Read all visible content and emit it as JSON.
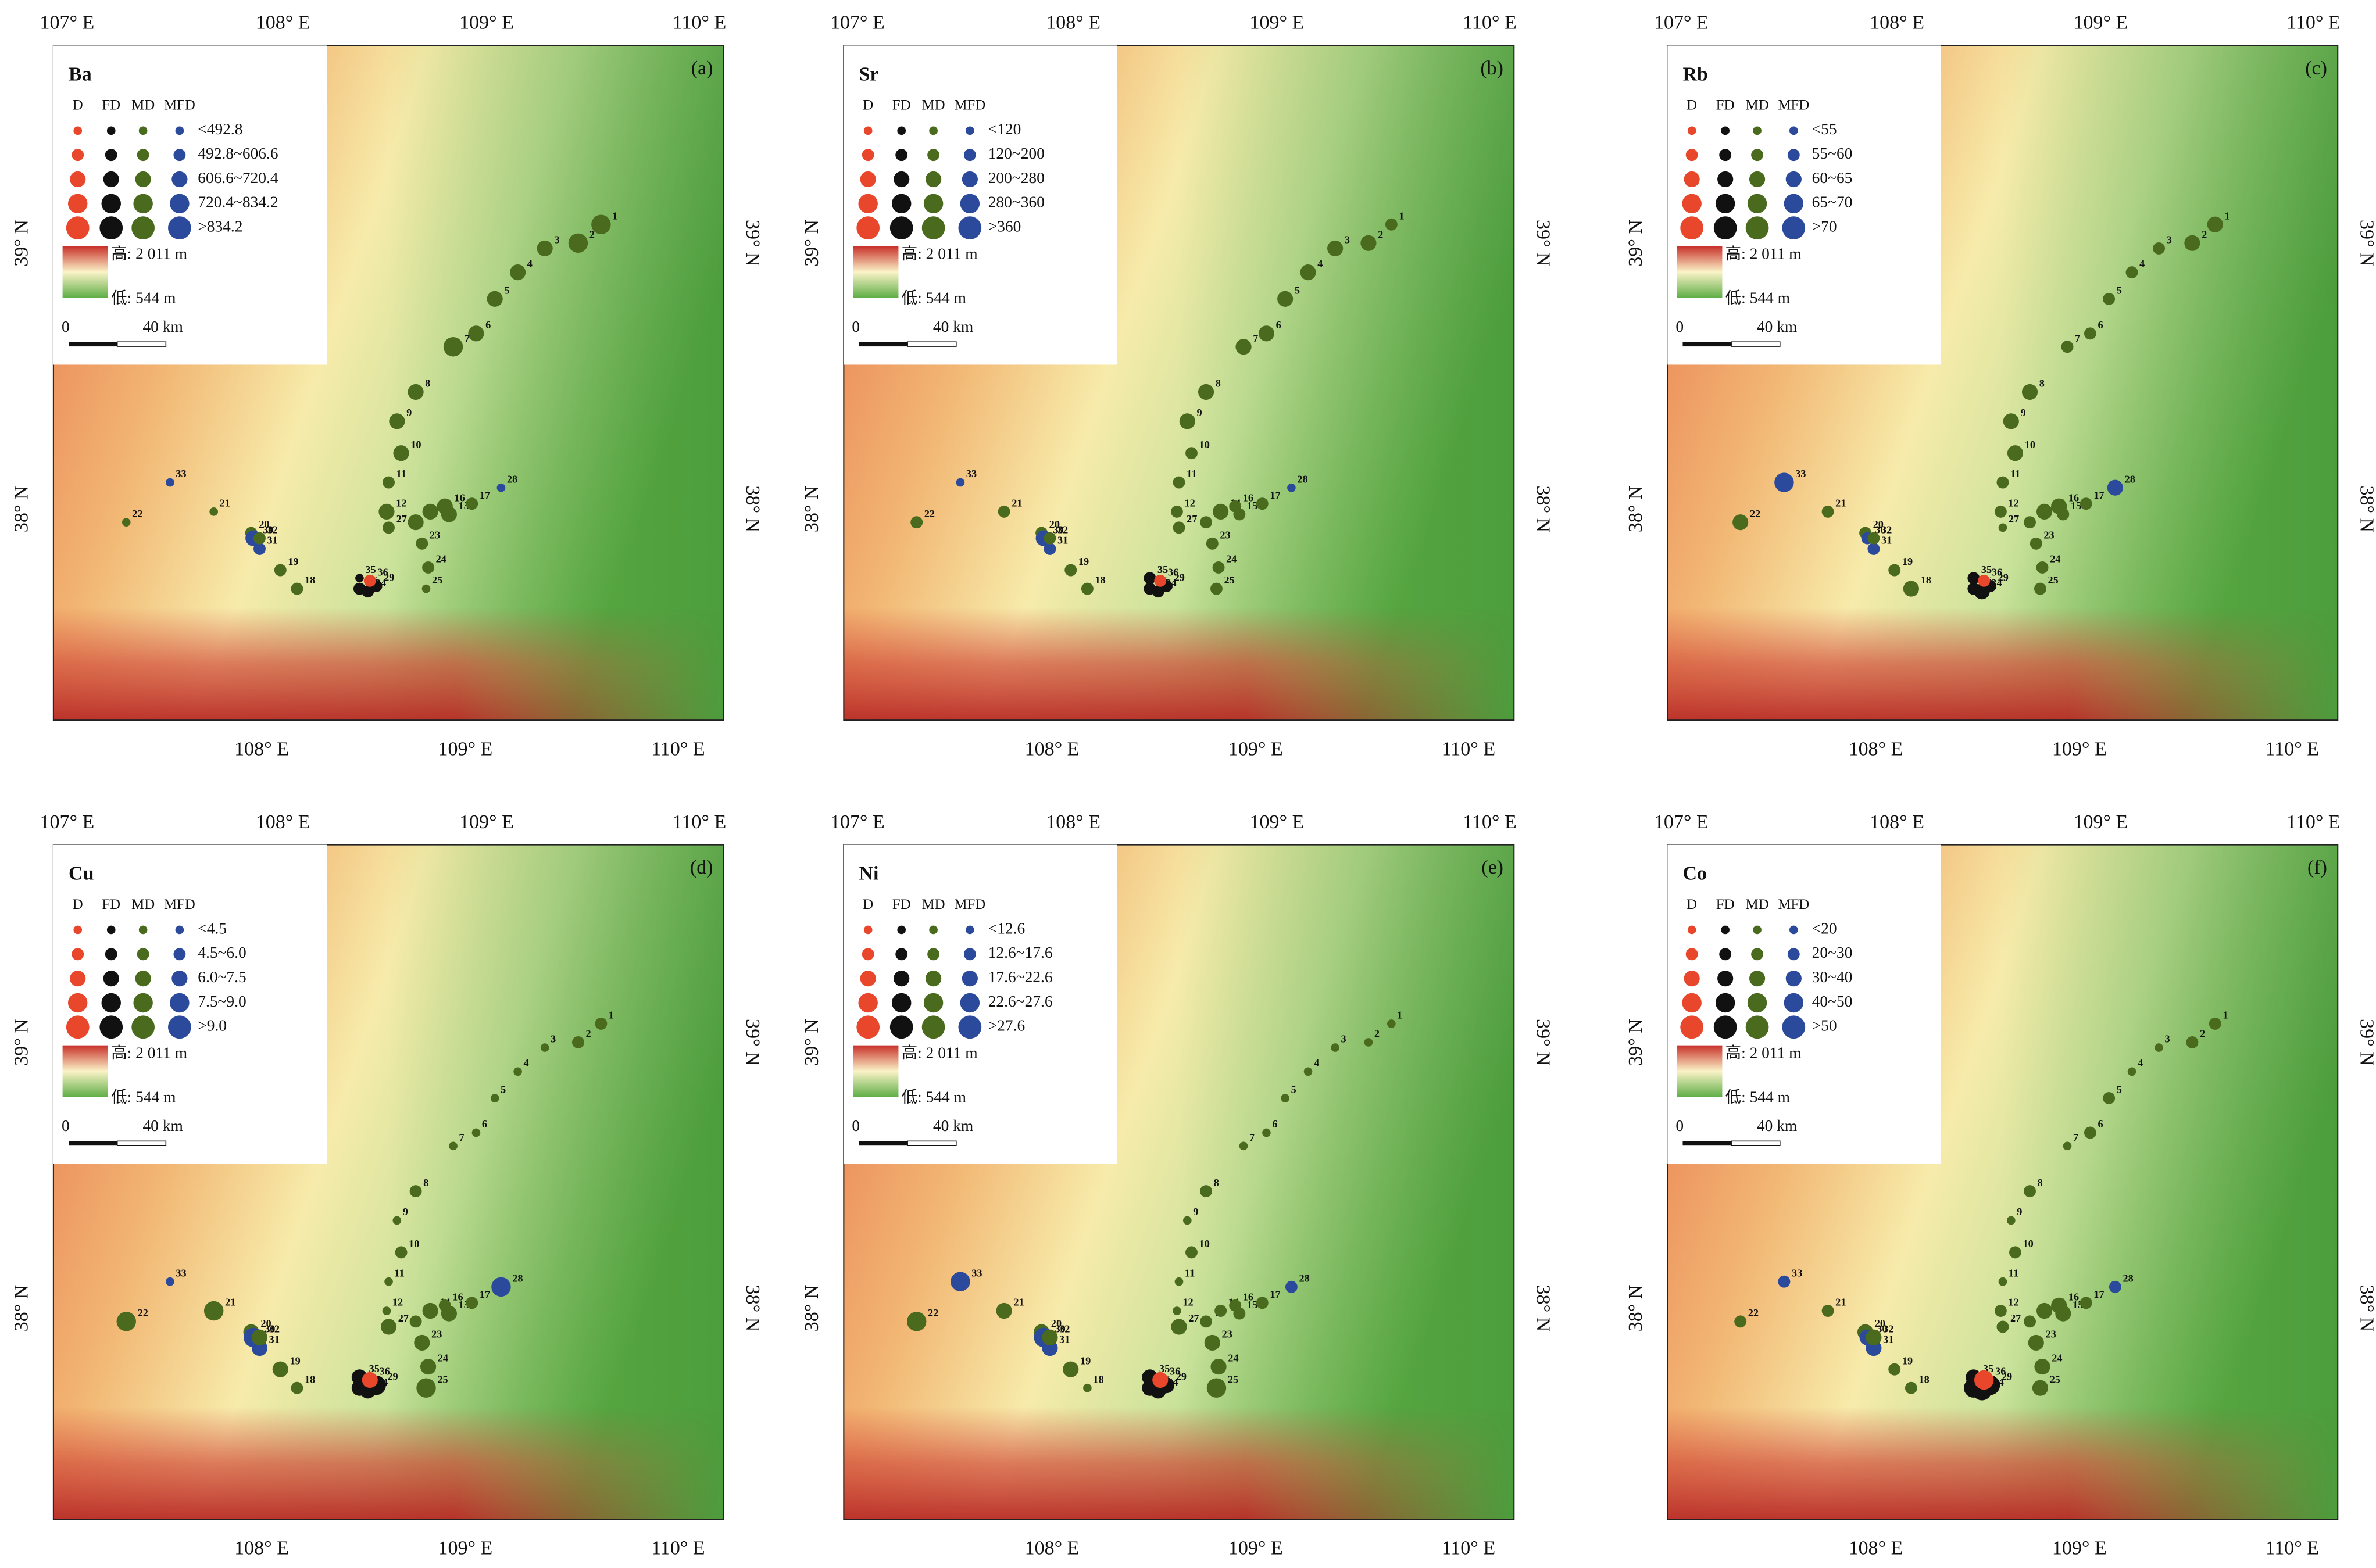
{
  "axes": {
    "top": [
      "107° E",
      "108° E",
      "109° E",
      "110° E"
    ],
    "bottom": [
      "108° E",
      "109° E",
      "110° E"
    ],
    "lat": [
      "39° N",
      "38° N"
    ]
  },
  "legend": {
    "types": [
      {
        "label": "D",
        "color": "#e8472c"
      },
      {
        "label": "FD",
        "color": "#111111"
      },
      {
        "label": "MD",
        "color": "#4a6b1e"
      },
      {
        "label": "MFD",
        "color": "#2c4a9c"
      }
    ],
    "high": "高: 2 011 m",
    "low": "低: 544 m",
    "scale_zero": "0",
    "scale_end": "40 km"
  },
  "sites": [
    {
      "label": "1",
      "lon": 109.63,
      "lat": 39.07,
      "type": 2
    },
    {
      "label": "2",
      "lon": 109.52,
      "lat": 39.0,
      "type": 2
    },
    {
      "label": "3",
      "lon": 109.36,
      "lat": 38.98,
      "type": 2
    },
    {
      "label": "4",
      "lon": 109.23,
      "lat": 38.89,
      "type": 2
    },
    {
      "label": "5",
      "lon": 109.12,
      "lat": 38.79,
      "type": 2
    },
    {
      "label": "6",
      "lon": 109.03,
      "lat": 38.66,
      "type": 2
    },
    {
      "label": "7",
      "lon": 108.92,
      "lat": 38.61,
      "type": 2
    },
    {
      "label": "8",
      "lon": 108.74,
      "lat": 38.44,
      "type": 2
    },
    {
      "label": "9",
      "lon": 108.65,
      "lat": 38.33,
      "type": 2
    },
    {
      "label": "10",
      "lon": 108.67,
      "lat": 38.21,
      "type": 2
    },
    {
      "label": "11",
      "lon": 108.61,
      "lat": 38.1,
      "type": 2
    },
    {
      "label": "12",
      "lon": 108.6,
      "lat": 37.99,
      "type": 2
    },
    {
      "label": "13",
      "lon": 108.74,
      "lat": 37.95,
      "type": 2
    },
    {
      "label": "14",
      "lon": 108.81,
      "lat": 37.99,
      "type": 2
    },
    {
      "label": "15",
      "lon": 108.9,
      "lat": 37.98,
      "type": 2
    },
    {
      "label": "16",
      "lon": 108.88,
      "lat": 38.01,
      "type": 2
    },
    {
      "label": "17",
      "lon": 109.01,
      "lat": 38.02,
      "type": 2
    },
    {
      "label": "18",
      "lon": 108.17,
      "lat": 37.7,
      "type": 2
    },
    {
      "label": "19",
      "lon": 108.09,
      "lat": 37.77,
      "type": 2
    },
    {
      "label": "20",
      "lon": 107.95,
      "lat": 37.91,
      "type": 2
    },
    {
      "label": "21",
      "lon": 107.77,
      "lat": 37.99,
      "type": 2
    },
    {
      "label": "22",
      "lon": 107.35,
      "lat": 37.95,
      "type": 2
    },
    {
      "label": "23",
      "lon": 108.77,
      "lat": 37.87,
      "type": 2
    },
    {
      "label": "24",
      "lon": 108.8,
      "lat": 37.78,
      "type": 2
    },
    {
      "label": "25",
      "lon": 108.79,
      "lat": 37.7,
      "type": 2
    },
    {
      "label": "26",
      "lon": 108.47,
      "lat": 37.7,
      "type": 1
    },
    {
      "label": "27",
      "lon": 108.61,
      "lat": 37.93,
      "type": 2
    },
    {
      "label": "28",
      "lon": 109.15,
      "lat": 38.08,
      "type": 3
    },
    {
      "label": "29",
      "lon": 108.55,
      "lat": 37.71,
      "type": 1
    },
    {
      "label": "30",
      "lon": 107.96,
      "lat": 37.89,
      "type": 3
    },
    {
      "label": "31",
      "lon": 107.99,
      "lat": 37.85,
      "type": 3
    },
    {
      "label": "32",
      "lon": 107.99,
      "lat": 37.89,
      "type": 2
    },
    {
      "label": "33",
      "lon": 107.56,
      "lat": 38.1,
      "type": 3
    },
    {
      "label": "34",
      "lon": 108.51,
      "lat": 37.69,
      "type": 1
    },
    {
      "label": "35",
      "lon": 108.47,
      "lat": 37.74,
      "type": 1
    },
    {
      "label": "36",
      "lon": 108.52,
      "lat": 37.73,
      "type": 0
    }
  ],
  "panels": [
    {
      "element": "Ba",
      "tag": "(a)",
      "classes": [
        "<492.8",
        "492.8~606.6",
        "606.6~720.4",
        "720.4~834.2",
        ">834.2"
      ],
      "site_classes": [
        4,
        4,
        3,
        3,
        3,
        3,
        4,
        3,
        3,
        3,
        2,
        3,
        3,
        3,
        3,
        3,
        2,
        2,
        2,
        2,
        1,
        1,
        2,
        2,
        1,
        2,
        2,
        1,
        2,
        3,
        2,
        2,
        1,
        2,
        1,
        2
      ]
    },
    {
      "element": "Sr",
      "tag": "(b)",
      "classes": [
        "<120",
        "120~200",
        "200~280",
        "280~360",
        ">360"
      ],
      "site_classes": [
        2,
        3,
        3,
        3,
        3,
        3,
        3,
        3,
        3,
        2,
        2,
        2,
        2,
        3,
        2,
        2,
        2,
        2,
        2,
        2,
        2,
        2,
        2,
        2,
        2,
        2,
        2,
        1,
        2,
        3,
        2,
        2,
        1,
        2,
        2,
        2
      ]
    },
    {
      "element": "Rb",
      "tag": "(c)",
      "classes": [
        "<55",
        "55~60",
        "60~65",
        "65~70",
        ">70"
      ],
      "site_classes": [
        3,
        3,
        2,
        2,
        2,
        2,
        2,
        3,
        3,
        3,
        2,
        2,
        2,
        3,
        2,
        3,
        2,
        3,
        2,
        2,
        2,
        3,
        2,
        2,
        2,
        2,
        1,
        3,
        2,
        2,
        2,
        2,
        4,
        3,
        2,
        2
      ]
    },
    {
      "element": "Cu",
      "tag": "(d)",
      "classes": [
        "<4.5",
        "4.5~6.0",
        "6.0~7.5",
        "7.5~9.0",
        ">9.0"
      ],
      "site_classes": [
        2,
        2,
        1,
        1,
        1,
        1,
        1,
        2,
        1,
        2,
        1,
        1,
        2,
        3,
        3,
        2,
        2,
        2,
        3,
        3,
        4,
        4,
        3,
        3,
        4,
        3,
        3,
        4,
        4,
        4,
        3,
        3,
        1,
        3,
        3,
        3
      ]
    },
    {
      "element": "Ni",
      "tag": "(e)",
      "classes": [
        "<12.6",
        "12.6~17.6",
        "17.6~22.6",
        "22.6~27.6",
        ">27.6"
      ],
      "site_classes": [
        1,
        1,
        1,
        1,
        1,
        1,
        1,
        2,
        1,
        2,
        1,
        1,
        2,
        2,
        2,
        2,
        2,
        1,
        3,
        3,
        3,
        4,
        3,
        3,
        4,
        3,
        3,
        2,
        3,
        4,
        3,
        3,
        4,
        3,
        3,
        3
      ]
    },
    {
      "element": "Co",
      "tag": "(f)",
      "classes": [
        "<20",
        "20~30",
        "30~40",
        "40~50",
        ">50"
      ],
      "site_classes": [
        2,
        2,
        1,
        1,
        2,
        2,
        1,
        2,
        1,
        2,
        1,
        2,
        2,
        3,
        3,
        3,
        2,
        2,
        2,
        3,
        2,
        2,
        3,
        3,
        3,
        4,
        2,
        2,
        4,
        3,
        3,
        3,
        2,
        4,
        3,
        4
      ]
    }
  ]
}
